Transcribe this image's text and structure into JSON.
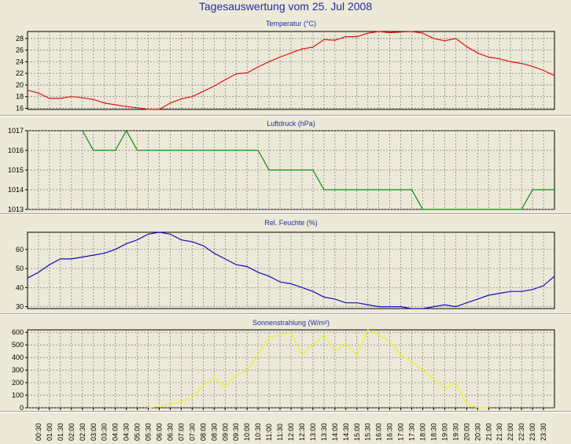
{
  "title": "Tagesauswertung vom 25. Jul 2008",
  "x_labels": [
    "00:30",
    "01:00",
    "01:30",
    "02:00",
    "02:30",
    "03:00",
    "03:30",
    "04:00",
    "04:30",
    "05:00",
    "05:30",
    "06:00",
    "06:30",
    "07:00",
    "07:30",
    "08:00",
    "08:30",
    "09:00",
    "09:30",
    "10:00",
    "10:30",
    "11:00",
    "11:30",
    "12:00",
    "12:30",
    "13:00",
    "13:30",
    "14:00",
    "14:30",
    "15:00",
    "15:30",
    "16:00",
    "16:30",
    "17:00",
    "17:30",
    "18:00",
    "18:30",
    "19:00",
    "19:30",
    "20:00",
    "20:30",
    "21:00",
    "21:30",
    "22:00",
    "22:30",
    "23:00",
    "23:30"
  ],
  "chart_data": [
    {
      "type": "line",
      "title": "Temperatur (°C)",
      "color": "#e01010",
      "ylim": [
        15.8,
        29.2
      ],
      "yticks": [
        16,
        18,
        20,
        22,
        24,
        26,
        28
      ],
      "ytick_labels": [
        "16",
        "18",
        "20",
        "22",
        "24",
        "26",
        "28"
      ],
      "x": [
        "00:00",
        "00:30",
        "01:00",
        "01:30",
        "02:00",
        "02:30",
        "03:00",
        "03:30",
        "04:00",
        "04:30",
        "05:00",
        "05:30",
        "06:00",
        "06:30",
        "07:00",
        "07:30",
        "08:00",
        "08:30",
        "09:00",
        "09:30",
        "10:00",
        "10:30",
        "11:00",
        "11:30",
        "12:00",
        "12:30",
        "13:00",
        "13:30",
        "14:00",
        "14:30",
        "15:00",
        "15:30",
        "16:00",
        "16:30",
        "17:00",
        "17:30",
        "18:00",
        "18:30",
        "19:00",
        "19:30",
        "20:00",
        "20:30",
        "21:00",
        "21:30",
        "22:00",
        "22:30",
        "23:00",
        "23:30",
        "24:00"
      ],
      "values": [
        19.1,
        18.6,
        17.7,
        17.7,
        18.0,
        17.8,
        17.5,
        16.9,
        16.6,
        16.3,
        16.1,
        15.8,
        15.8,
        16.9,
        17.6,
        18.0,
        18.9,
        19.8,
        20.9,
        21.9,
        22.1,
        23.1,
        24.0,
        24.8,
        25.5,
        26.2,
        26.5,
        27.8,
        27.7,
        28.3,
        28.3,
        28.9,
        29.2,
        29.0,
        29.1,
        29.2,
        28.9,
        28.0,
        27.6,
        28.0,
        26.6,
        25.5,
        24.8,
        24.5,
        24.0,
        23.7,
        23.2,
        22.5,
        21.6
      ]
    },
    {
      "type": "line",
      "title": "Luftdruck (hPa)",
      "color": "#0a8a0a",
      "ylim": [
        1013,
        1017
      ],
      "yticks": [
        1013,
        1014,
        1015,
        1016,
        1017
      ],
      "ytick_labels": [
        "1013",
        "1014",
        "1015",
        "1016",
        "1017"
      ],
      "x": [
        "02:30",
        "03:00",
        "04:00",
        "04:30",
        "05:00",
        "10:30",
        "11:00",
        "13:00",
        "13:30",
        "17:30",
        "18:00",
        "22:30",
        "23:00",
        "24:00"
      ],
      "values": [
        1017,
        1016,
        1016,
        1017,
        1016,
        1016,
        1015,
        1015,
        1014,
        1014,
        1013,
        1013,
        1014,
        1014
      ]
    },
    {
      "type": "line",
      "title": "Rel. Feuchte (%)",
      "color": "#1010c0",
      "ylim": [
        29,
        69
      ],
      "yticks": [
        30,
        40,
        50,
        60
      ],
      "ytick_labels": [
        "30",
        "40",
        "50",
        "60"
      ],
      "x": [
        "00:00",
        "00:30",
        "01:00",
        "01:30",
        "02:00",
        "02:30",
        "03:00",
        "03:30",
        "04:00",
        "04:30",
        "05:00",
        "05:30",
        "06:00",
        "06:30",
        "07:00",
        "07:30",
        "08:00",
        "08:30",
        "09:00",
        "09:30",
        "10:00",
        "10:30",
        "11:00",
        "11:30",
        "12:00",
        "12:30",
        "13:00",
        "13:30",
        "14:00",
        "14:30",
        "15:00",
        "15:30",
        "16:00",
        "16:30",
        "17:00",
        "17:30",
        "18:00",
        "18:30",
        "19:00",
        "19:30",
        "20:00",
        "20:30",
        "21:00",
        "21:30",
        "22:00",
        "22:30",
        "23:00",
        "23:30",
        "24:00"
      ],
      "values": [
        45,
        48,
        52,
        55,
        55,
        56,
        57,
        58,
        60,
        63,
        65,
        68,
        69,
        68,
        65,
        64,
        62,
        58,
        55,
        52,
        51,
        48,
        46,
        43,
        42,
        40,
        38,
        35,
        34,
        32,
        32,
        31,
        30,
        30,
        30,
        29,
        29,
        30,
        31,
        30,
        32,
        34,
        36,
        37,
        38,
        38,
        39,
        41,
        46
      ]
    },
    {
      "type": "line",
      "title": "Sonnenstrahlung (W/m²)",
      "color": "#f0f028",
      "ylim": [
        0,
        620
      ],
      "yticks": [
        0,
        100,
        200,
        300,
        400,
        500,
        600
      ],
      "ytick_labels": [
        "0",
        "100",
        "200",
        "300",
        "400",
        "500",
        "600"
      ],
      "x": [
        "05:30",
        "06:00",
        "06:30",
        "07:00",
        "07:30",
        "08:00",
        "08:30",
        "09:00",
        "09:30",
        "10:00",
        "10:30",
        "11:00",
        "11:30",
        "12:00",
        "12:30",
        "13:00",
        "13:30",
        "14:00",
        "14:30",
        "15:00",
        "15:30",
        "16:00",
        "16:30",
        "17:00",
        "17:30",
        "18:00",
        "18:30",
        "19:00",
        "19:30",
        "20:00",
        "20:30",
        "21:00"
      ],
      "values": [
        0,
        10,
        30,
        50,
        80,
        180,
        240,
        160,
        260,
        300,
        420,
        560,
        580,
        600,
        420,
        500,
        580,
        450,
        510,
        420,
        620,
        580,
        530,
        420,
        370,
        300,
        230,
        150,
        200,
        30,
        0,
        0
      ]
    }
  ]
}
